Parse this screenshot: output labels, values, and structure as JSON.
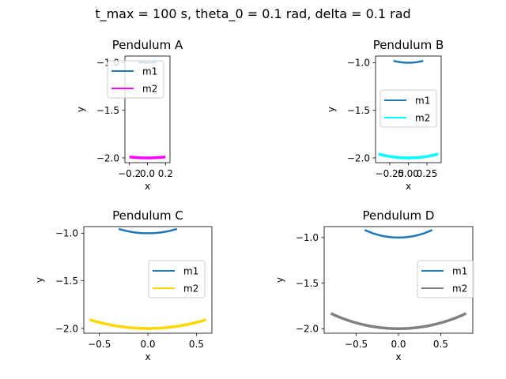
{
  "suptitle": "t_max = 100 s, theta_0 = 0.1 rad, delta = 0.1 rad",
  "chart_data": [
    {
      "type": "line",
      "title": "Pendulum A",
      "xlabel": "x",
      "ylabel": "y",
      "xlim": [
        -0.25,
        0.25
      ],
      "ylim": [
        -2.05,
        -0.93
      ],
      "xticks": [
        -0.2,
        0.0,
        0.2
      ],
      "xtick_labels": [
        "−0.2",
        "0.0",
        "0.2"
      ],
      "yticks": [
        -2.0,
        -1.5,
        -1.0
      ],
      "ytick_labels": [
        "−2.0",
        "−1.5",
        "−1.0"
      ],
      "legend": "upper-left",
      "series": [
        {
          "name": "m1",
          "color": "#1f77b4",
          "amp": 0.1,
          "len": 1
        },
        {
          "name": "m2",
          "color": "#ff00ff",
          "amp": 0.2,
          "len": 2
        }
      ]
    },
    {
      "type": "line",
      "title": "Pendulum B",
      "xlabel": "x",
      "ylabel": "y",
      "xlim": [
        -0.44,
        0.44
      ],
      "ylim": [
        -2.05,
        -0.93
      ],
      "xticks": [
        -0.25,
        0.0,
        0.25
      ],
      "xtick_labels": [
        "−0.25",
        "0.00",
        "0.25"
      ],
      "yticks": [
        -2.0,
        -1.5,
        -1.0
      ],
      "ytick_labels": [
        "−2.0",
        "−1.5",
        "−1.0"
      ],
      "legend": "center-right",
      "series": [
        {
          "name": "m1",
          "color": "#1f77b4",
          "amp": 0.2,
          "len": 1
        },
        {
          "name": "m2",
          "color": "#00ffff",
          "amp": 0.4,
          "len": 2
        }
      ]
    },
    {
      "type": "line",
      "title": "Pendulum C",
      "xlabel": "x",
      "ylabel": "y",
      "xlim": [
        -0.66,
        0.66
      ],
      "ylim": [
        -2.05,
        -0.93
      ],
      "xticks": [
        -0.5,
        0.0,
        0.5
      ],
      "xtick_labels": [
        "−0.5",
        "0.0",
        "0.5"
      ],
      "yticks": [
        -2.0,
        -1.5,
        -1.0
      ],
      "ytick_labels": [
        "−2.0",
        "−1.5",
        "−1.0"
      ],
      "legend": "center-right",
      "series": [
        {
          "name": "m1",
          "color": "#1f77b4",
          "amp": 0.3,
          "len": 1
        },
        {
          "name": "m2",
          "color": "#ffd700",
          "amp": 0.6,
          "len": 2
        }
      ]
    },
    {
      "type": "line",
      "title": "Pendulum D",
      "xlabel": "x",
      "ylabel": "y",
      "xlim": [
        -0.88,
        0.88
      ],
      "ylim": [
        -2.05,
        -0.88
      ],
      "xticks": [
        -0.5,
        0.0,
        0.5
      ],
      "xtick_labels": [
        "−0.5",
        "0.0",
        "0.5"
      ],
      "yticks": [
        -2.0,
        -1.5,
        -1.0
      ],
      "ytick_labels": [
        "−2.0",
        "−1.5",
        "−1.0"
      ],
      "legend": "center-right",
      "series": [
        {
          "name": "m1",
          "color": "#1f77b4",
          "amp": 0.4,
          "len": 1
        },
        {
          "name": "m2",
          "color": "#808080",
          "amp": 0.8,
          "len": 2
        }
      ]
    }
  ]
}
